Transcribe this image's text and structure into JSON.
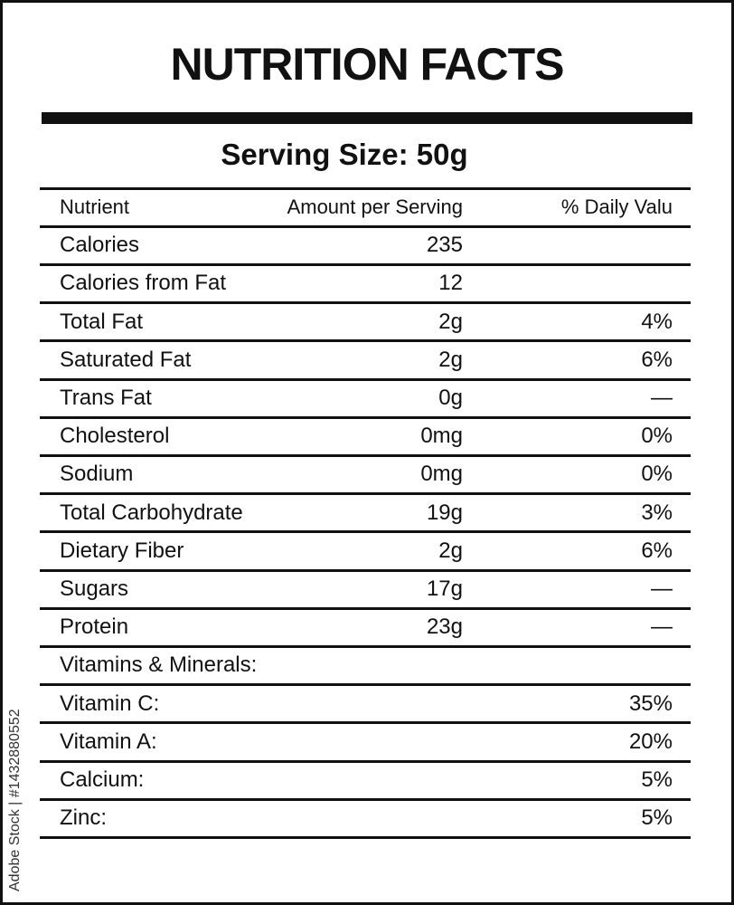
{
  "title": "NUTRITION FACTS",
  "serving_size": "Serving Size: 50g",
  "table": {
    "header": {
      "nutrient": "Nutrient",
      "amount": "Amount per Serving",
      "daily_value": "% Daily Valu"
    },
    "rows": [
      {
        "nutrient": "Calories",
        "amount": "235"
      },
      {
        "nutrient": "Calories from Fat",
        "amount": "12"
      },
      {
        "nutrient": "Total Fat",
        "amount": "2g",
        "daily_value": "4%"
      },
      {
        "nutrient": "Saturated Fat",
        "amount": "2g",
        "daily_value": "6%"
      },
      {
        "nutrient": "Trans Fat",
        "amount": "0g",
        "daily_value": "—"
      },
      {
        "nutrient": "Cholesterol",
        "amount": "0mg",
        "daily_value": "0%"
      },
      {
        "nutrient": "Sodium",
        "amount": "0mg",
        "daily_value": "0%"
      },
      {
        "nutrient": "Total Carbohydrate",
        "amount": "19g",
        "daily_value": "3%"
      },
      {
        "nutrient": "Dietary Fiber",
        "amount": "2g",
        "daily_value": "6%"
      },
      {
        "nutrient": "Sugars",
        "amount": "17g",
        "daily_value": "—"
      },
      {
        "nutrient": "Protein",
        "amount": "23g",
        "daily_value": "—"
      },
      {
        "nutrient": "Vitamins & Minerals:"
      },
      {
        "nutrient": "Vitamin C:",
        "daily_value": "35%"
      },
      {
        "nutrient": "Vitamin A:",
        "daily_value": "20%"
      },
      {
        "nutrient": "Calcium:",
        "daily_value": "5%"
      },
      {
        "nutrient": "Zinc:",
        "daily_value": "5%"
      }
    ]
  },
  "side_text": "Adobe Stock | #1432880552"
}
